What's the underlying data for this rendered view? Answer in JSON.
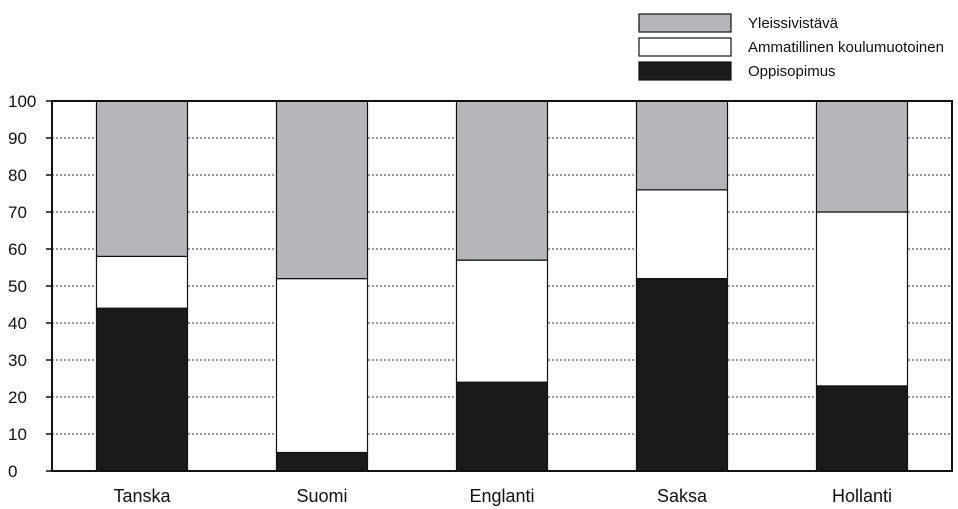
{
  "chart_data": {
    "type": "bar",
    "stacked": true,
    "categories": [
      "Tanska",
      "Suomi",
      "Englanti",
      "Saksa",
      "Hollanti"
    ],
    "series": [
      {
        "name": "Oppisopimus",
        "color": "#1a1a1a",
        "values": [
          44,
          5,
          24,
          52,
          23
        ]
      },
      {
        "name": "Ammatillinen koulumuotoinen",
        "color": "#ffffff",
        "values": [
          14,
          47,
          33,
          24,
          47
        ]
      },
      {
        "name": "Yleissivistävä",
        "color": "#b5b6b8",
        "values": [
          42,
          48,
          43,
          24,
          30
        ]
      }
    ],
    "legend_order": [
      "Yleissivistävä",
      "Ammatillinen koulumuotoinen",
      "Oppisopimus"
    ],
    "yticks": [
      "0",
      "10",
      "20",
      "30",
      "40",
      "50",
      "60",
      "70",
      "80",
      "90",
      "100"
    ],
    "ylim": [
      0,
      100
    ],
    "grid": "horizontal dashed",
    "legend_position": "top-right"
  }
}
